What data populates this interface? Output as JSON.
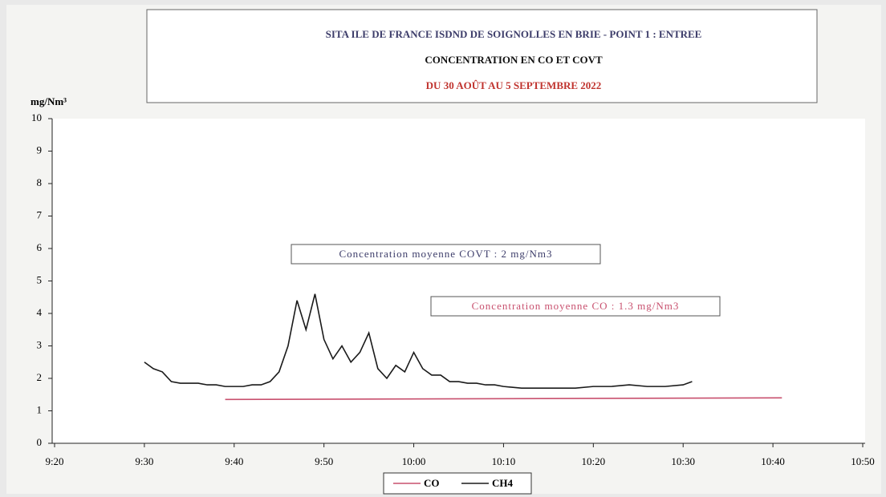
{
  "chart_data": {
    "type": "line",
    "title": "SITA ILE DE FRANCE  ISDND DE SOIGNOLLES EN BRIE - POINT 1 : ENTREE",
    "subtitle": "CONCENTRATION EN CO ET COVT",
    "period": "DU 30 AOÛT AU 5 SEPTEMBRE 2022",
    "y_label": "mg/Nm³",
    "annotations": [
      "Concentration moyenne COVT : 2 mg/Nm3",
      "Concentration moyenne CO : 1.3 mg/Nm3"
    ],
    "xlim": [
      "9:20",
      "10:50"
    ],
    "xticks": [
      "9:20",
      "9:30",
      "9:40",
      "9:50",
      "10:00",
      "10:10",
      "10:20",
      "10:30",
      "10:40",
      "10:50"
    ],
    "ylim": [
      0,
      10
    ],
    "yticks": [
      0,
      1,
      2,
      3,
      4,
      5,
      6,
      7,
      8,
      9,
      10
    ],
    "series": [
      {
        "name": "CO",
        "color": "#c8506e",
        "x": [
          "9:39",
          "10:41"
        ],
        "values": [
          1.35,
          1.4
        ]
      },
      {
        "name": "CH4",
        "color": "#1a1a1a",
        "x": [
          "9:30",
          "9:31",
          "9:32",
          "9:33",
          "9:34",
          "9:35",
          "9:36",
          "9:37",
          "9:38",
          "9:39",
          "9:40",
          "9:41",
          "9:42",
          "9:43",
          "9:44",
          "9:45",
          "9:46",
          "9:47",
          "9:48",
          "9:49",
          "9:50",
          "9:51",
          "9:52",
          "9:53",
          "9:54",
          "9:55",
          "9:56",
          "9:57",
          "9:58",
          "9:59",
          "10:00",
          "10:01",
          "10:02",
          "10:03",
          "10:04",
          "10:05",
          "10:06",
          "10:07",
          "10:08",
          "10:09",
          "10:10",
          "10:12",
          "10:14",
          "10:16",
          "10:18",
          "10:20",
          "10:22",
          "10:24",
          "10:26",
          "10:28",
          "10:30",
          "10:31"
        ],
        "values": [
          2.5,
          2.3,
          2.2,
          1.9,
          1.85,
          1.85,
          1.85,
          1.8,
          1.8,
          1.75,
          1.75,
          1.75,
          1.8,
          1.8,
          1.9,
          2.2,
          3.0,
          4.4,
          3.5,
          4.6,
          3.2,
          2.6,
          3.0,
          2.5,
          2.8,
          3.4,
          2.3,
          2.0,
          2.4,
          2.2,
          2.8,
          2.3,
          2.1,
          2.1,
          1.9,
          1.9,
          1.85,
          1.85,
          1.8,
          1.8,
          1.75,
          1.7,
          1.7,
          1.7,
          1.7,
          1.75,
          1.75,
          1.8,
          1.75,
          1.75,
          1.8,
          1.9
        ]
      }
    ]
  }
}
